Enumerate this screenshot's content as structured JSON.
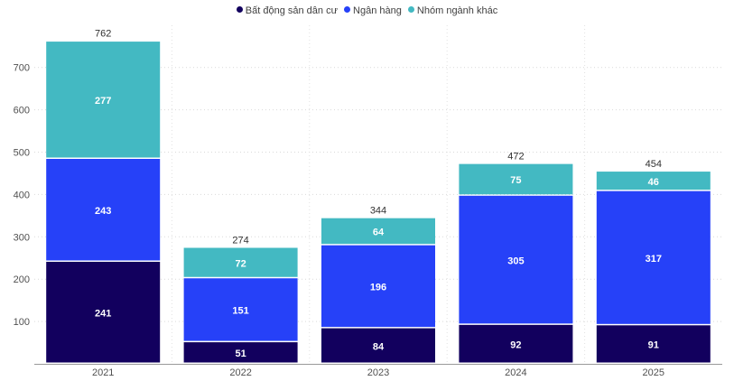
{
  "chart_data": {
    "type": "bar",
    "stacked": true,
    "title": "",
    "xlabel": "",
    "ylabel": "",
    "categories": [
      "2021",
      "2022",
      "2023",
      "2024",
      "2025"
    ],
    "ylim": [
      0,
      800
    ],
    "yticks": [
      "100",
      "200",
      "300",
      "400",
      "500",
      "600",
      "700"
    ],
    "grid": true,
    "legend_position": "top-center",
    "series": [
      {
        "name": "Bất động sản dân cư",
        "color": "#12005e",
        "values": [
          241,
          51,
          84,
          92,
          91
        ]
      },
      {
        "name": "Ngân hàng",
        "color": "#2641f8",
        "values": [
          243,
          151,
          196,
          305,
          317
        ]
      },
      {
        "name": "Nhóm ngành khác",
        "color": "#43b9c2",
        "values": [
          277,
          72,
          64,
          75,
          46
        ]
      }
    ],
    "totals": [
      762,
      274,
      344,
      472,
      454
    ]
  }
}
